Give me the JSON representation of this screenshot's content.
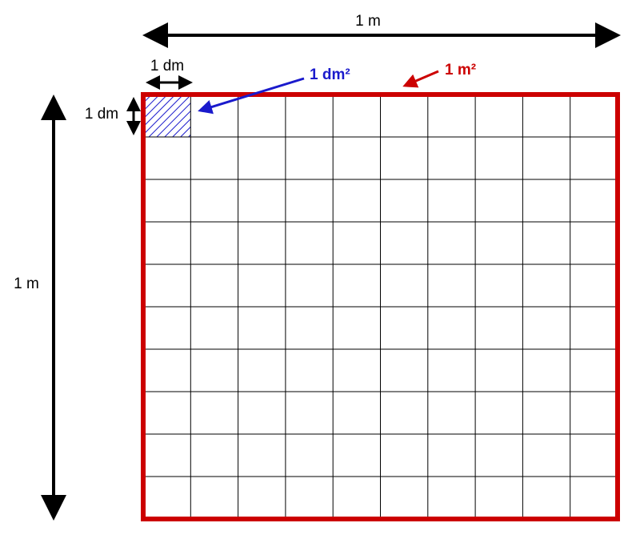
{
  "labels": {
    "top_length": "1 m",
    "left_length": "1 m",
    "cell_width": "1 dm",
    "cell_height": "1 dm",
    "cell_area": "1 dm²",
    "square_area": "1 m²"
  }
}
